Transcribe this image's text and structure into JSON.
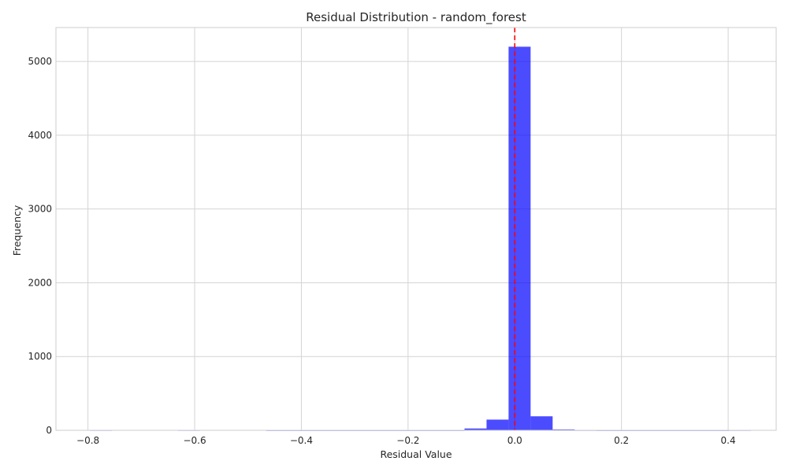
{
  "chart_data": {
    "type": "bar",
    "title": "Residual Distribution - random_forest",
    "xlabel": "Residual Value",
    "ylabel": "Frequency",
    "xlim": [
      -0.86,
      0.49
    ],
    "ylim": [
      0,
      5460
    ],
    "xticks": [
      -0.8,
      -0.6,
      -0.4,
      -0.2,
      0.0,
      0.2,
      0.4
    ],
    "xtick_labels": [
      "−0.8",
      "−0.6",
      "−0.4",
      "−0.2",
      "0.0",
      "0.2",
      "0.4"
    ],
    "yticks": [
      0,
      1000,
      2000,
      3000,
      4000,
      5000
    ],
    "ytick_labels": [
      "0",
      "1000",
      "2000",
      "3000",
      "4000",
      "5000"
    ],
    "grid": true,
    "bin_width": 0.0413,
    "bins": [
      {
        "x0": -0.7963,
        "count": 2
      },
      {
        "x0": -0.6311,
        "count": 2
      },
      {
        "x0": -0.4659,
        "count": 1
      },
      {
        "x0": -0.4246,
        "count": 1
      },
      {
        "x0": -0.3833,
        "count": 1
      },
      {
        "x0": -0.342,
        "count": 1
      },
      {
        "x0": -0.3007,
        "count": 1
      },
      {
        "x0": -0.2594,
        "count": 1
      },
      {
        "x0": -0.2181,
        "count": 1
      },
      {
        "x0": -0.1768,
        "count": 1
      },
      {
        "x0": -0.1355,
        "count": 1
      },
      {
        "x0": -0.0942,
        "count": 25
      },
      {
        "x0": -0.0529,
        "count": 145
      },
      {
        "x0": -0.0116,
        "count": 5200
      },
      {
        "x0": 0.0297,
        "count": 190
      },
      {
        "x0": 0.071,
        "count": 12
      },
      {
        "x0": 0.1123,
        "count": 2
      },
      {
        "x0": 0.1536,
        "count": 1
      },
      {
        "x0": 0.1949,
        "count": 1
      },
      {
        "x0": 0.2362,
        "count": 1
      },
      {
        "x0": 0.2775,
        "count": 1
      },
      {
        "x0": 0.3188,
        "count": 1
      },
      {
        "x0": 0.3601,
        "count": 1
      },
      {
        "x0": 0.4014,
        "count": 2
      }
    ],
    "reference_line": {
      "x": 0.0,
      "color": "#ff0000",
      "style": "dashed"
    },
    "bar_color": "#0000ff",
    "bar_opacity": 0.7
  }
}
